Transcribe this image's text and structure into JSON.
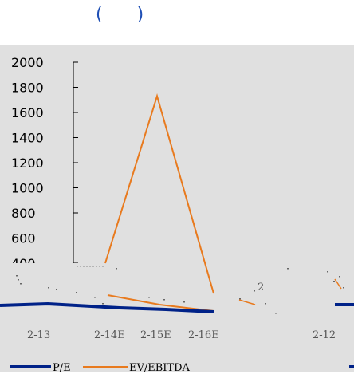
{
  "title": "( )",
  "chart_data": {
    "type": "line",
    "title": "( )",
    "ylim": [
      0,
      2000
    ],
    "yticks": [
      "2000",
      "1800",
      "1600",
      "1400",
      "1200",
      "1000",
      "800",
      "600",
      "400"
    ],
    "categories": [
      "2-13",
      "2-14E",
      "2-15E",
      "2-16E"
    ],
    "extra_categories": [
      "2-12"
    ],
    "series": [
      {
        "name": "P/E",
        "color": "#002288",
        "values": [
          30,
          20,
          15,
          10
        ]
      },
      {
        "name": "EV/EBITDA",
        "color": "#e87a1e",
        "values": [
          60,
          1730,
          30,
          10
        ]
      }
    ],
    "legend_position": "bottom",
    "grid": false,
    "annotations": [
      "2"
    ]
  },
  "colors": {
    "background": "#e0e0e0",
    "pe": "#002288",
    "ev": "#e87a1e"
  }
}
